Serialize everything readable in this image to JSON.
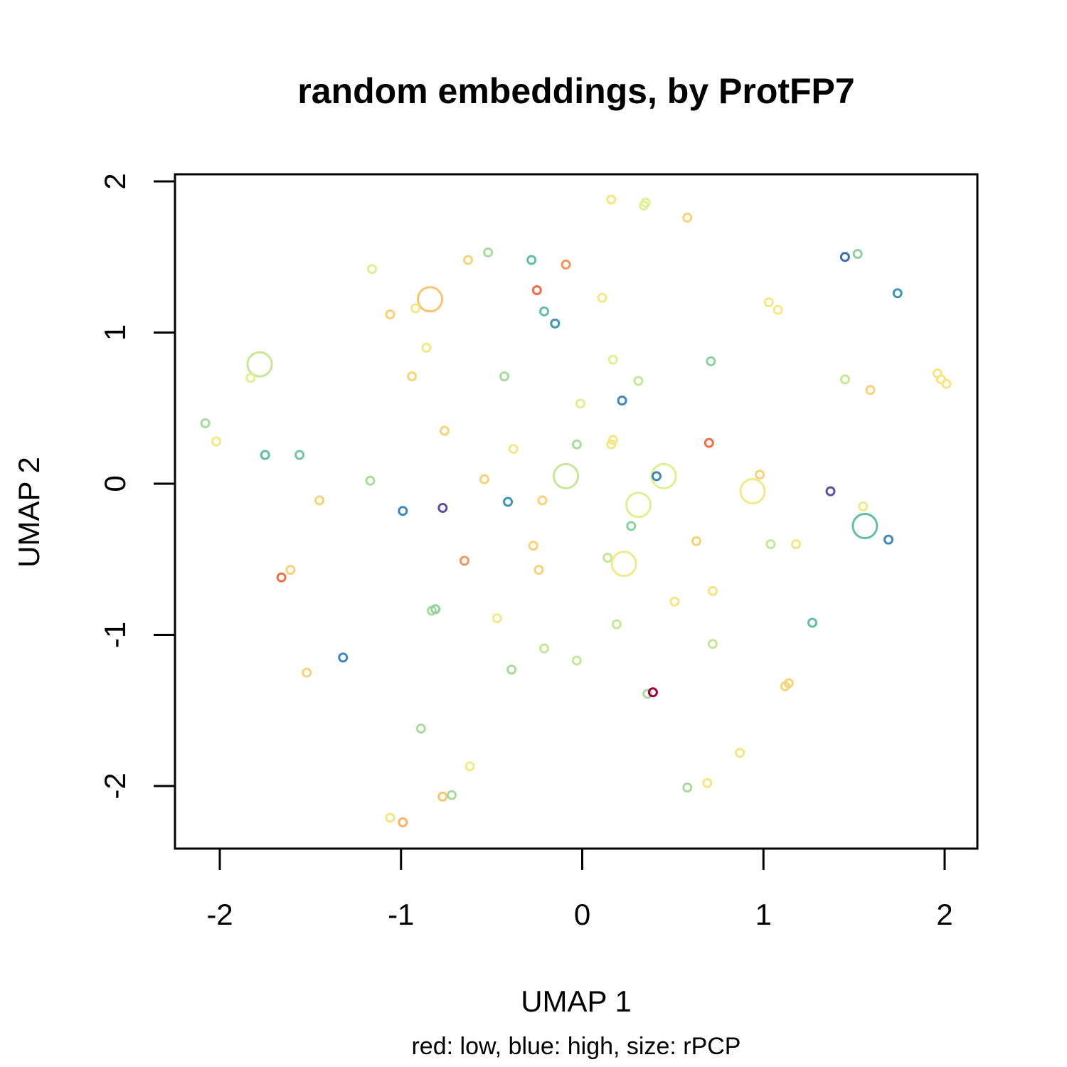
{
  "chart_data": {
    "type": "scatter",
    "title": "random embeddings, by ProtFP7",
    "xlabel": "UMAP 1",
    "ylabel": "UMAP 2",
    "subtitle": "red: low, blue: high, size: rPCP",
    "xlim": [
      -2.25,
      2.2
    ],
    "ylim": [
      -2.42,
      2.05
    ],
    "xticks": [
      -2,
      -1,
      0,
      1,
      2
    ],
    "yticks": [
      -2,
      -1,
      0,
      1,
      2
    ],
    "grid": false,
    "legend": "none",
    "color_scale": "Spectral (red = low, blue = high)",
    "points": [
      {
        "x": 0.16,
        "y": 1.88,
        "color": "#f7e482",
        "size": 1
      },
      {
        "x": 0.35,
        "y": 1.86,
        "color": "#dfef92",
        "size": 1
      },
      {
        "x": 0.34,
        "y": 1.84,
        "color": "#dfef92",
        "size": 1
      },
      {
        "x": 0.58,
        "y": 1.76,
        "color": "#f9d27a",
        "size": 1
      },
      {
        "x": -0.52,
        "y": 1.53,
        "color": "#a9db9c",
        "size": 1
      },
      {
        "x": -0.63,
        "y": 1.48,
        "color": "#f9d27a",
        "size": 1
      },
      {
        "x": -0.28,
        "y": 1.48,
        "color": "#64bda6",
        "size": 1
      },
      {
        "x": -0.09,
        "y": 1.45,
        "color": "#f6945e",
        "size": 1
      },
      {
        "x": 1.45,
        "y": 1.5,
        "color": "#3b6fb2",
        "size": 1
      },
      {
        "x": 1.52,
        "y": 1.52,
        "color": "#8fd1a0",
        "size": 1
      },
      {
        "x": -1.16,
        "y": 1.42,
        "color": "#dfef92",
        "size": 1
      },
      {
        "x": -0.84,
        "y": 1.22,
        "color": "#fdc46e",
        "size": 3
      },
      {
        "x": -0.25,
        "y": 1.28,
        "color": "#f26e49",
        "size": 1
      },
      {
        "x": 0.11,
        "y": 1.23,
        "color": "#f1ea88",
        "size": 1
      },
      {
        "x": 1.74,
        "y": 1.26,
        "color": "#3f94b8",
        "size": 1
      },
      {
        "x": -1.06,
        "y": 1.12,
        "color": "#f9d27a",
        "size": 1
      },
      {
        "x": -0.92,
        "y": 1.16,
        "color": "#f1ea88",
        "size": 1
      },
      {
        "x": -0.21,
        "y": 1.14,
        "color": "#64bda6",
        "size": 1
      },
      {
        "x": -0.15,
        "y": 1.06,
        "color": "#3f94b8",
        "size": 1
      },
      {
        "x": 1.03,
        "y": 1.2,
        "color": "#f1ea88",
        "size": 1
      },
      {
        "x": 1.08,
        "y": 1.15,
        "color": "#f1ea88",
        "size": 1
      },
      {
        "x": -0.86,
        "y": 0.9,
        "color": "#f1ea88",
        "size": 1
      },
      {
        "x": -1.78,
        "y": 0.79,
        "color": "#c5e896",
        "size": 3
      },
      {
        "x": -1.83,
        "y": 0.7,
        "color": "#dfef92",
        "size": 1
      },
      {
        "x": -0.94,
        "y": 0.71,
        "color": "#f9d27a",
        "size": 1
      },
      {
        "x": -0.43,
        "y": 0.71,
        "color": "#a9db9c",
        "size": 1
      },
      {
        "x": 0.17,
        "y": 0.82,
        "color": "#dfef92",
        "size": 1
      },
      {
        "x": 0.71,
        "y": 0.81,
        "color": "#8fd1a0",
        "size": 1
      },
      {
        "x": 0.31,
        "y": 0.68,
        "color": "#c5e896",
        "size": 1
      },
      {
        "x": 0.22,
        "y": 0.55,
        "color": "#3f86bc",
        "size": 1
      },
      {
        "x": -0.01,
        "y": 0.53,
        "color": "#dfef92",
        "size": 1
      },
      {
        "x": 1.45,
        "y": 0.69,
        "color": "#c5e896",
        "size": 1
      },
      {
        "x": 1.59,
        "y": 0.62,
        "color": "#f9d27a",
        "size": 1
      },
      {
        "x": 1.96,
        "y": 0.73,
        "color": "#f7e482",
        "size": 1
      },
      {
        "x": 1.98,
        "y": 0.69,
        "color": "#f7e482",
        "size": 1
      },
      {
        "x": 2.01,
        "y": 0.66,
        "color": "#f7e482",
        "size": 1
      },
      {
        "x": -2.08,
        "y": 0.4,
        "color": "#a9db9c",
        "size": 1
      },
      {
        "x": -2.02,
        "y": 0.28,
        "color": "#f1ea88",
        "size": 1
      },
      {
        "x": -1.75,
        "y": 0.19,
        "color": "#64bda6",
        "size": 1
      },
      {
        "x": -1.56,
        "y": 0.19,
        "color": "#76c6a5",
        "size": 1
      },
      {
        "x": -0.76,
        "y": 0.35,
        "color": "#f9d27a",
        "size": 1
      },
      {
        "x": -0.38,
        "y": 0.23,
        "color": "#f1ea88",
        "size": 1
      },
      {
        "x": 0.16,
        "y": 0.26,
        "color": "#f7e482",
        "size": 1
      },
      {
        "x": 0.17,
        "y": 0.29,
        "color": "#f7e482",
        "size": 1
      },
      {
        "x": -0.03,
        "y": 0.26,
        "color": "#a9db9c",
        "size": 1
      },
      {
        "x": 0.7,
        "y": 0.27,
        "color": "#f26e49",
        "size": 1
      },
      {
        "x": -1.17,
        "y": 0.02,
        "color": "#a9db9c",
        "size": 1
      },
      {
        "x": -0.54,
        "y": 0.03,
        "color": "#f9d27a",
        "size": 1
      },
      {
        "x": -0.09,
        "y": 0.05,
        "color": "#c5e896",
        "size": 3
      },
      {
        "x": 0.45,
        "y": 0.05,
        "color": "#dfef92",
        "size": 3
      },
      {
        "x": 0.41,
        "y": 0.05,
        "color": "#3f86bc",
        "size": 1
      },
      {
        "x": 0.98,
        "y": 0.06,
        "color": "#f9d27a",
        "size": 1
      },
      {
        "x": 0.94,
        "y": -0.05,
        "color": "#f1ea88",
        "size": 3
      },
      {
        "x": 1.37,
        "y": -0.05,
        "color": "#5e4fa2",
        "size": 1
      },
      {
        "x": -1.45,
        "y": -0.11,
        "color": "#f9d27a",
        "size": 1
      },
      {
        "x": -0.99,
        "y": -0.18,
        "color": "#3f86bc",
        "size": 1
      },
      {
        "x": -0.77,
        "y": -0.16,
        "color": "#5e4fa2",
        "size": 1
      },
      {
        "x": -0.41,
        "y": -0.12,
        "color": "#3f94b8",
        "size": 1
      },
      {
        "x": -0.22,
        "y": -0.11,
        "color": "#f9d27a",
        "size": 1
      },
      {
        "x": 0.31,
        "y": -0.14,
        "color": "#dfef92",
        "size": 3
      },
      {
        "x": 0.27,
        "y": -0.28,
        "color": "#8fd1a0",
        "size": 1
      },
      {
        "x": 1.55,
        "y": -0.15,
        "color": "#f1ea88",
        "size": 1
      },
      {
        "x": 1.56,
        "y": -0.28,
        "color": "#64bda6",
        "size": 3
      },
      {
        "x": 1.69,
        "y": -0.37,
        "color": "#3f86bc",
        "size": 1
      },
      {
        "x": -0.27,
        "y": -0.41,
        "color": "#f9d27a",
        "size": 1
      },
      {
        "x": 0.63,
        "y": -0.38,
        "color": "#f9d27a",
        "size": 1
      },
      {
        "x": 1.04,
        "y": -0.4,
        "color": "#c5e896",
        "size": 1
      },
      {
        "x": 1.18,
        "y": -0.4,
        "color": "#f7e482",
        "size": 1
      },
      {
        "x": -1.66,
        "y": -0.62,
        "color": "#f26e49",
        "size": 1
      },
      {
        "x": -1.61,
        "y": -0.57,
        "color": "#f9d27a",
        "size": 1
      },
      {
        "x": -0.65,
        "y": -0.51,
        "color": "#f6945e",
        "size": 1
      },
      {
        "x": -0.24,
        "y": -0.57,
        "color": "#f9d27a",
        "size": 1
      },
      {
        "x": 0.14,
        "y": -0.49,
        "color": "#c5e896",
        "size": 1
      },
      {
        "x": 0.23,
        "y": -0.53,
        "color": "#f1ea88",
        "size": 3
      },
      {
        "x": 0.72,
        "y": -0.71,
        "color": "#f7e482",
        "size": 1
      },
      {
        "x": 0.51,
        "y": -0.78,
        "color": "#f7e482",
        "size": 1
      },
      {
        "x": -0.83,
        "y": -0.84,
        "color": "#a9db9c",
        "size": 1
      },
      {
        "x": -0.81,
        "y": -0.83,
        "color": "#8fd1a0",
        "size": 1
      },
      {
        "x": -0.47,
        "y": -0.89,
        "color": "#f1ea88",
        "size": 1
      },
      {
        "x": 0.19,
        "y": -0.93,
        "color": "#c5e896",
        "size": 1
      },
      {
        "x": 1.27,
        "y": -0.92,
        "color": "#64bda6",
        "size": 1
      },
      {
        "x": -1.32,
        "y": -1.15,
        "color": "#3f86bc",
        "size": 1
      },
      {
        "x": -1.52,
        "y": -1.25,
        "color": "#f9d27a",
        "size": 1
      },
      {
        "x": -0.39,
        "y": -1.23,
        "color": "#a9db9c",
        "size": 1
      },
      {
        "x": -0.21,
        "y": -1.09,
        "color": "#c5e896",
        "size": 1
      },
      {
        "x": -0.03,
        "y": -1.17,
        "color": "#c5e896",
        "size": 1
      },
      {
        "x": 0.72,
        "y": -1.06,
        "color": "#c5e896",
        "size": 1
      },
      {
        "x": 0.36,
        "y": -1.39,
        "color": "#a9db9c",
        "size": 1
      },
      {
        "x": 0.39,
        "y": -1.38,
        "color": "#9e0142",
        "size": 1
      },
      {
        "x": 1.12,
        "y": -1.34,
        "color": "#f9d27a",
        "size": 1
      },
      {
        "x": 1.14,
        "y": -1.32,
        "color": "#f9d27a",
        "size": 1
      },
      {
        "x": -0.89,
        "y": -1.62,
        "color": "#a9db9c",
        "size": 1
      },
      {
        "x": -0.62,
        "y": -1.87,
        "color": "#f1ea88",
        "size": 1
      },
      {
        "x": 0.87,
        "y": -1.78,
        "color": "#f7e482",
        "size": 1
      },
      {
        "x": 0.58,
        "y": -2.01,
        "color": "#a9db9c",
        "size": 1
      },
      {
        "x": 0.69,
        "y": -1.98,
        "color": "#f7e482",
        "size": 1
      },
      {
        "x": -0.77,
        "y": -2.07,
        "color": "#fdc46e",
        "size": 1
      },
      {
        "x": -0.72,
        "y": -2.06,
        "color": "#a9db9c",
        "size": 1
      },
      {
        "x": -1.06,
        "y": -2.21,
        "color": "#f7e482",
        "size": 1
      },
      {
        "x": -0.99,
        "y": -2.24,
        "color": "#fdb367",
        "size": 1
      }
    ]
  }
}
